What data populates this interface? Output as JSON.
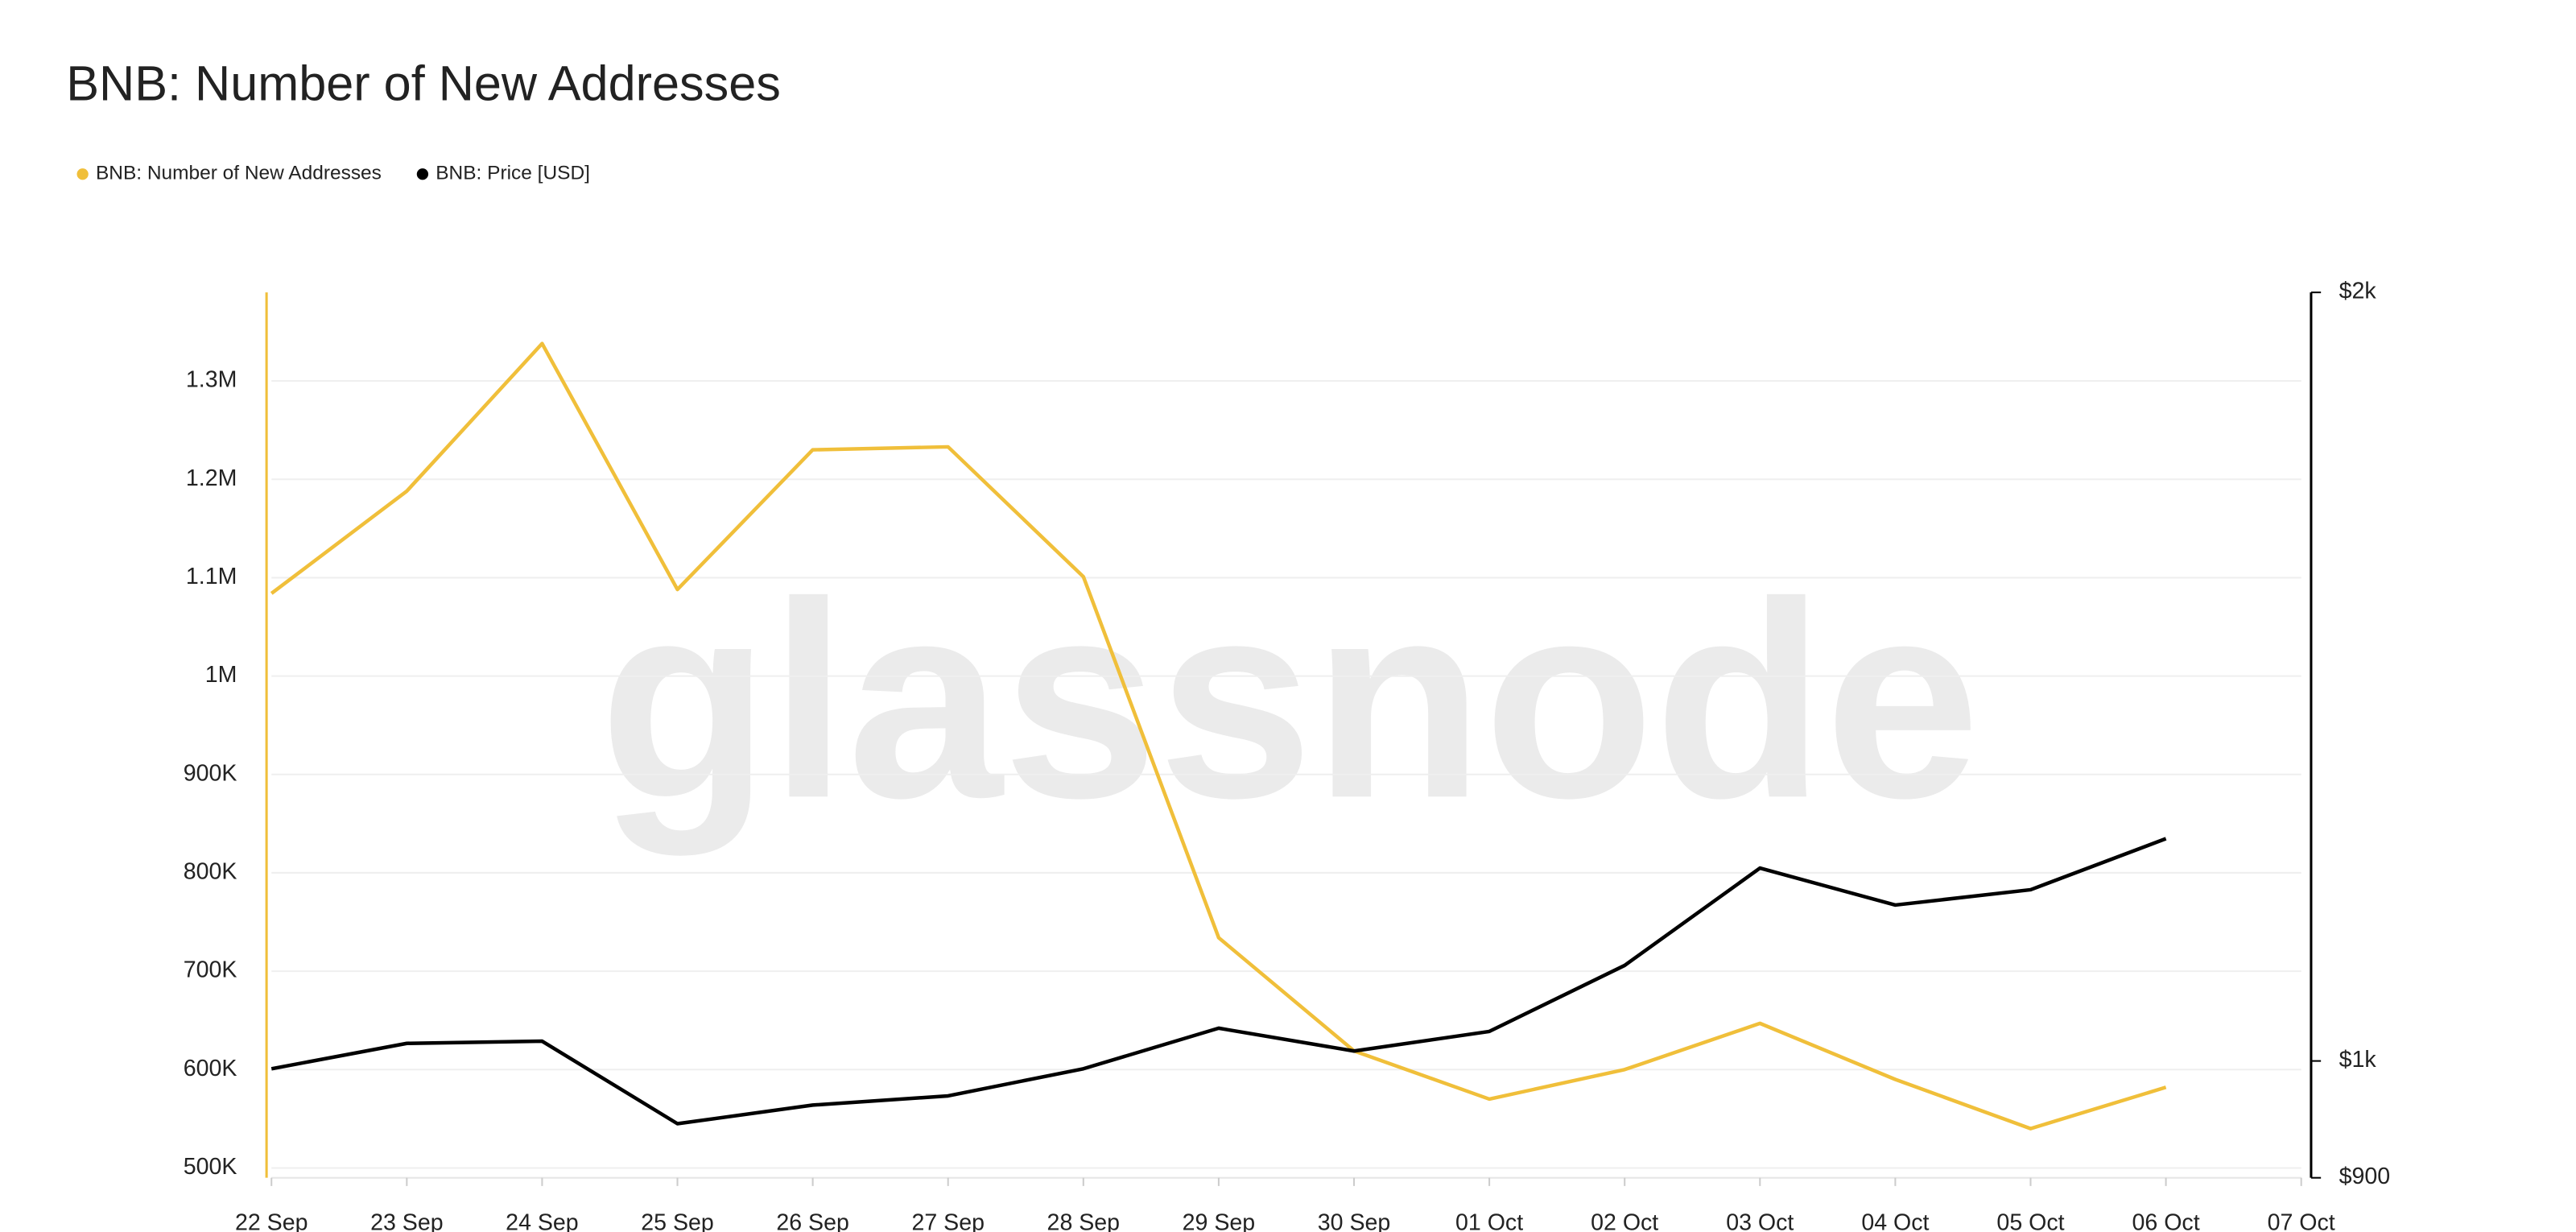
{
  "chart_data": {
    "type": "line",
    "title": "BNB: Number of New Addresses",
    "watermark": "glassnode",
    "categories": [
      "22 Sep",
      "23 Sep",
      "24 Sep",
      "25 Sep",
      "26 Sep",
      "27 Sep",
      "28 Sep",
      "29 Sep",
      "30 Sep",
      "01 Oct",
      "02 Oct",
      "03 Oct",
      "04 Oct",
      "05 Oct",
      "06 Oct",
      "07 Oct"
    ],
    "series": [
      {
        "name": "BNB: Number of New Addresses",
        "color": "#f0bf3a",
        "axis": "y",
        "values": [
          1084000,
          1188000,
          1338000,
          1088000,
          1230000,
          1233000,
          1101000,
          734000,
          619000,
          570000,
          600000,
          647000,
          590000,
          540000,
          582000,
          null
        ]
      },
      {
        "name": "BNB: Price [USD]",
        "color": "#000000",
        "axis": "y2",
        "values": [
          993,
          1016,
          1018,
          945,
          961,
          969,
          993,
          1030,
          1009,
          1027,
          1090,
          1190,
          1151,
          1167,
          1222,
          null
        ]
      }
    ],
    "ylim": [
      490000,
      1390000
    ],
    "yticks": [
      {
        "value": 500000,
        "label": "500K"
      },
      {
        "value": 600000,
        "label": "600K"
      },
      {
        "value": 700000,
        "label": "700K"
      },
      {
        "value": 800000,
        "label": "800K"
      },
      {
        "value": 900000,
        "label": "900K"
      },
      {
        "value": 1000000,
        "label": "1M"
      },
      {
        "value": 1100000,
        "label": "1.1M"
      },
      {
        "value": 1200000,
        "label": "1.2M"
      },
      {
        "value": 1300000,
        "label": "1.3M"
      }
    ],
    "y2lim": [
      900,
      2000
    ],
    "y2scale": "log",
    "y2ticks": [
      {
        "value": 900,
        "label": "$900"
      },
      {
        "value": 1000,
        "label": "$1k"
      },
      {
        "value": 2000,
        "label": "$2k"
      }
    ],
    "grid": true,
    "legend": "top-left"
  }
}
